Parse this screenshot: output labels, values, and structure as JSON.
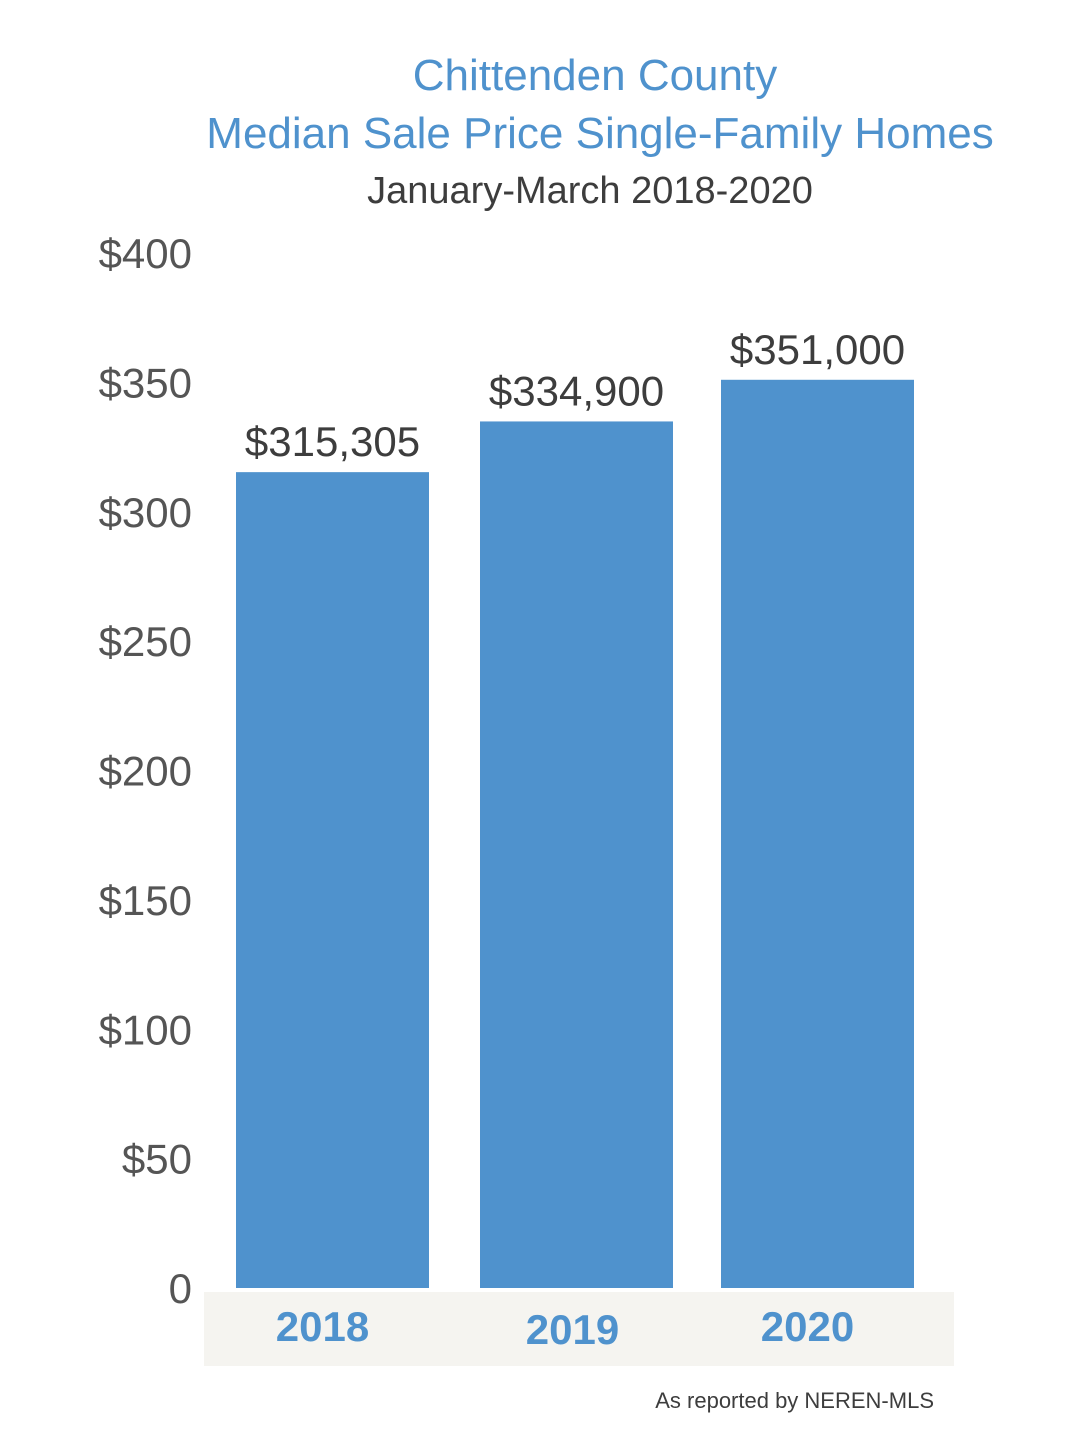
{
  "chart_data": {
    "type": "bar",
    "title_line1": "Chittenden County",
    "title_line2": "Median Sale Price Single-Family Homes",
    "subtitle": "January-March 2018-2020",
    "categories": [
      "2018",
      "2019",
      "2020"
    ],
    "values": [
      315305,
      334900,
      351000
    ],
    "data_labels": [
      "$315,305",
      "$334,900",
      "$351,000"
    ],
    "y_ticks": [
      "0",
      "$50",
      "$100",
      "$150",
      "$200",
      "$250",
      "$300",
      "$350",
      "$400"
    ],
    "y_tick_values": [
      0,
      50000,
      100000,
      150000,
      200000,
      250000,
      300000,
      350000,
      400000
    ],
    "ylim": [
      0,
      400000
    ],
    "grid": false,
    "bar_color": "#4f92cd",
    "category_band_color": "#f5f4f0",
    "source": "As reported by NEREN-MLS"
  }
}
